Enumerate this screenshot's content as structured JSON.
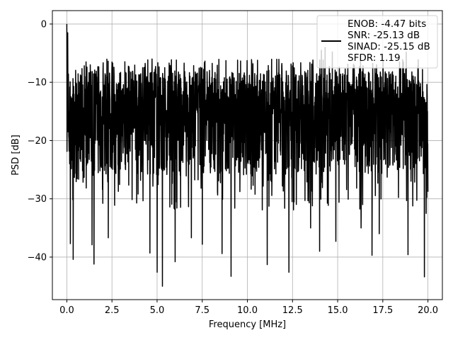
{
  "chart_data": {
    "type": "line",
    "title": "",
    "xlabel": "Frequency [MHz]",
    "ylabel": "PSD [dB]",
    "xlim": [
      -0.8,
      20.8
    ],
    "ylim": [
      -47.3,
      2.3
    ],
    "xticks": [
      0.0,
      2.5,
      5.0,
      7.5,
      10.0,
      12.5,
      15.0,
      17.5,
      20.0
    ],
    "xtick_labels": [
      "0.0",
      "2.5",
      "5.0",
      "7.5",
      "10.0",
      "12.5",
      "15.0",
      "17.5",
      "20.0"
    ],
    "yticks": [
      0,
      -10,
      -20,
      -30,
      -40
    ],
    "ytick_labels": [
      "0",
      "−10",
      "−20",
      "−30",
      "−40"
    ],
    "grid": true,
    "legend_placement": "top-right",
    "series": [
      {
        "name": "ENOB: -4.47 bits\nSNR: -25.13 dB\nSINAD: -25.15 dB\nSFDR: 1.19",
        "color": "#000000",
        "noise_band": {
          "x_range": [
            0.0,
            20.0
          ],
          "median": -15,
          "typical_upper": -8,
          "typical_lower": -26
        },
        "peaks": [
          {
            "x": 0.0,
            "y": 0.0
          },
          {
            "x": 0.05,
            "y": -1.5
          },
          {
            "x": 14.1,
            "y": -4.5
          },
          {
            "x": 14.3,
            "y": -4.0
          },
          {
            "x": 14.7,
            "y": -4.8
          },
          {
            "x": 18.8,
            "y": -4.8
          }
        ],
        "dips": [
          {
            "x": 0.35,
            "y": -40.4
          },
          {
            "x": 0.2,
            "y": -37.7
          },
          {
            "x": 1.5,
            "y": -41.2
          },
          {
            "x": 1.4,
            "y": -37.9
          },
          {
            "x": 2.3,
            "y": -36.7
          },
          {
            "x": 4.6,
            "y": -39.3
          },
          {
            "x": 5.0,
            "y": -42.6
          },
          {
            "x": 5.3,
            "y": -45.0
          },
          {
            "x": 6.0,
            "y": -40.8
          },
          {
            "x": 6.9,
            "y": -36.7
          },
          {
            "x": 7.5,
            "y": -37.8
          },
          {
            "x": 8.6,
            "y": -39.4
          },
          {
            "x": 9.1,
            "y": -43.3
          },
          {
            "x": 11.1,
            "y": -41.3
          },
          {
            "x": 12.3,
            "y": -42.6
          },
          {
            "x": 13.5,
            "y": -35.0
          },
          {
            "x": 14.0,
            "y": -39.0
          },
          {
            "x": 14.9,
            "y": -37.3
          },
          {
            "x": 16.3,
            "y": -35.0
          },
          {
            "x": 16.9,
            "y": -39.7
          },
          {
            "x": 17.3,
            "y": -36.0
          },
          {
            "x": 18.9,
            "y": -39.6
          },
          {
            "x": 19.8,
            "y": -43.4
          },
          {
            "x": 19.9,
            "y": -32.5
          }
        ]
      }
    ]
  }
}
